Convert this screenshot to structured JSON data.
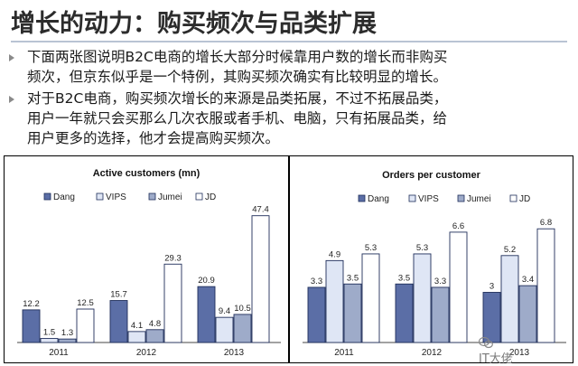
{
  "title": "增长的动力：购买频次与品类扩展",
  "bullets": [
    {
      "lines": [
        "下面两张图说明B2C电商的增长大部分时候靠用户数的增长而非购买",
        "频次，但京东似乎是一个特例，其购买频次确实有比较明显的增长。"
      ]
    },
    {
      "lines": [
        "对于B2C电商，购买频次增长的来源是品类拓展，不过不拓展品类，",
        "用户一年就只会买那么几次衣服或者手机、电脑，只有拓展品类，给",
        "用户更多的选择，他才会提高购买频次。"
      ]
    }
  ],
  "watermark": "IT大佬",
  "colors": {
    "Dang": "#5b6ea6",
    "VIPS": "#dfe6f5",
    "Jumei": "#9eabc9",
    "JD": "#ffffff",
    "border": "#1f2e5a"
  },
  "chart_data": [
    {
      "type": "bar",
      "title": "Active customers (mn)",
      "categories": [
        "2011",
        "2012",
        "2013"
      ],
      "series": [
        {
          "name": "Dang",
          "values": [
            12.2,
            15.7,
            20.9
          ]
        },
        {
          "name": "VIPS",
          "values": [
            1.5,
            4.1,
            9.4
          ]
        },
        {
          "name": "Jumei",
          "values": [
            1.3,
            4.8,
            10.5
          ]
        },
        {
          "name": "JD",
          "values": [
            12.5,
            29.3,
            47.4
          ]
        }
      ],
      "ylim": [
        0,
        50
      ],
      "legend": "top",
      "grid": false
    },
    {
      "type": "bar",
      "title": "Orders per customer",
      "categories": [
        "2011",
        "2012",
        "2013"
      ],
      "series": [
        {
          "name": "Dang",
          "values": [
            3.3,
            3.5,
            3.0
          ]
        },
        {
          "name": "VIPS",
          "values": [
            4.9,
            5.3,
            5.2
          ]
        },
        {
          "name": "Jumei",
          "values": [
            3.5,
            3.3,
            3.4
          ]
        },
        {
          "name": "JD",
          "values": [
            5.3,
            6.6,
            6.8
          ]
        }
      ],
      "ylim": [
        0,
        8
      ],
      "legend": "top",
      "grid": false
    }
  ]
}
